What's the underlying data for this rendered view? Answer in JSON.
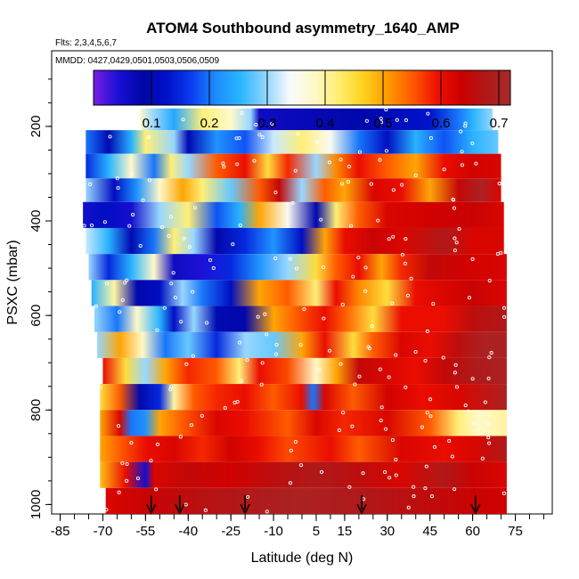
{
  "chart_data": {
    "type": "heatmap",
    "title": "ATOM4 Southbound asymmetry_1640_AMP",
    "flights_label": "Flts: 2,3,4,5,6,7",
    "dates_label": "MMDD: 0427,0429,0501,0503,0506,0509",
    "xlabel": "Latitude (deg N)",
    "ylabel": "PSXC (mbar)",
    "xlim": [
      -88,
      88
    ],
    "ylim": [
      1020,
      40
    ],
    "x_ticks": [
      -85,
      -70,
      -55,
      -40,
      -25,
      -10,
      5,
      15,
      30,
      45,
      60,
      75
    ],
    "x_tick_labels": [
      "-85",
      "-70",
      "-55",
      "-40",
      "-25",
      "-10",
      "5",
      "15",
      "30",
      "45",
      "60",
      "75"
    ],
    "y_ticks": [
      200,
      400,
      600,
      800,
      1000
    ],
    "y_tick_labels": [
      "200",
      "400",
      "600",
      "800",
      "1000"
    ],
    "colorbar": {
      "range": [
        0.0,
        0.72
      ],
      "ticks": [
        0.1,
        0.2,
        0.3,
        0.4,
        0.5,
        0.6,
        0.7
      ],
      "tick_labels": [
        "0.1",
        "0.2",
        "0.3",
        "0.4",
        "0.5",
        "0.6",
        "0.7"
      ],
      "colors": [
        "#7b1de6",
        "#1810d6",
        "#0006a6",
        "#0010c8",
        "#0a3ef0",
        "#1e8cff",
        "#29b6ff",
        "#8fd4ff",
        "#f8fbff",
        "#fff9c8",
        "#ffee70",
        "#ffd21e",
        "#ff9a00",
        "#ff5a00",
        "#f01000",
        "#cc0000",
        "#b01818",
        "#a82a2a"
      ]
    },
    "profile_markers_lat": [
      -53,
      -43,
      -20,
      21,
      61
    ],
    "bands": [
      {
        "p_top": 162,
        "p_bot": 208,
        "lat_start": -57,
        "lat_end": 67,
        "stops": [
          [
            -57,
            0.38
          ],
          [
            -52,
            0.3
          ],
          [
            -45,
            0.24
          ],
          [
            -35,
            0.42
          ],
          [
            -25,
            0.38
          ],
          [
            -18,
            0.3
          ],
          [
            -15,
            0.06
          ],
          [
            0,
            0.07
          ],
          [
            20,
            0.09
          ],
          [
            45,
            0.13
          ],
          [
            55,
            0.2
          ],
          [
            60,
            0.25
          ],
          [
            67,
            0.3
          ]
        ]
      },
      {
        "p_top": 208,
        "p_bot": 258,
        "lat_start": -76,
        "lat_end": 69,
        "stops": [
          [
            -76,
            0.2
          ],
          [
            -68,
            0.1
          ],
          [
            -60,
            0.25
          ],
          [
            -55,
            0.42
          ],
          [
            -45,
            0.3
          ],
          [
            -40,
            0.1
          ],
          [
            -30,
            0.22
          ],
          [
            -20,
            0.18
          ],
          [
            -10,
            0.32
          ],
          [
            0,
            0.42
          ],
          [
            10,
            0.35
          ],
          [
            20,
            0.2
          ],
          [
            30,
            0.12
          ],
          [
            40,
            0.25
          ],
          [
            50,
            0.18
          ],
          [
            60,
            0.25
          ],
          [
            69,
            0.28
          ]
        ]
      },
      {
        "p_top": 258,
        "p_bot": 310,
        "lat_start": -76,
        "lat_end": 70,
        "stops": [
          [
            -76,
            0.15
          ],
          [
            -68,
            0.25
          ],
          [
            -60,
            0.38
          ],
          [
            -52,
            0.2
          ],
          [
            -46,
            0.42
          ],
          [
            -40,
            0.3
          ],
          [
            -30,
            0.55
          ],
          [
            -20,
            0.6
          ],
          [
            -12,
            0.45
          ],
          [
            -5,
            0.58
          ],
          [
            5,
            0.3
          ],
          [
            12,
            0.52
          ],
          [
            20,
            0.6
          ],
          [
            30,
            0.55
          ],
          [
            40,
            0.5
          ],
          [
            50,
            0.6
          ],
          [
            60,
            0.63
          ],
          [
            70,
            0.62
          ]
        ]
      },
      {
        "p_top": 310,
        "p_bot": 360,
        "lat_start": -76,
        "lat_end": 70,
        "stops": [
          [
            -76,
            0.3
          ],
          [
            -66,
            0.12
          ],
          [
            -58,
            0.22
          ],
          [
            -50,
            0.38
          ],
          [
            -42,
            0.5
          ],
          [
            -35,
            0.42
          ],
          [
            -25,
            0.28
          ],
          [
            -15,
            0.55
          ],
          [
            -8,
            0.65
          ],
          [
            0,
            0.3
          ],
          [
            8,
            0.55
          ],
          [
            15,
            0.5
          ],
          [
            25,
            0.62
          ],
          [
            35,
            0.6
          ],
          [
            45,
            0.5
          ],
          [
            55,
            0.65
          ],
          [
            63,
            0.7
          ],
          [
            70,
            0.62
          ]
        ]
      },
      {
        "p_top": 360,
        "p_bot": 415,
        "lat_start": -77,
        "lat_end": 71,
        "stops": [
          [
            -77,
            0.05
          ],
          [
            -70,
            0.12
          ],
          [
            -60,
            0.05
          ],
          [
            -50,
            0.3
          ],
          [
            -40,
            0.42
          ],
          [
            -30,
            0.18
          ],
          [
            -22,
            0.25
          ],
          [
            -15,
            0.5
          ],
          [
            -5,
            0.35
          ],
          [
            5,
            0.08
          ],
          [
            12,
            0.42
          ],
          [
            20,
            0.55
          ],
          [
            30,
            0.62
          ],
          [
            45,
            0.63
          ],
          [
            60,
            0.64
          ],
          [
            71,
            0.62
          ]
        ]
      },
      {
        "p_top": 415,
        "p_bot": 470,
        "lat_start": -76,
        "lat_end": 71,
        "stops": [
          [
            -76,
            0.32
          ],
          [
            -68,
            0.25
          ],
          [
            -60,
            0.1
          ],
          [
            -52,
            0.2
          ],
          [
            -45,
            0.42
          ],
          [
            -38,
            0.3
          ],
          [
            -30,
            0.08
          ],
          [
            -20,
            0.15
          ],
          [
            -10,
            0.22
          ],
          [
            0,
            0.12
          ],
          [
            8,
            0.5
          ],
          [
            15,
            0.6
          ],
          [
            25,
            0.64
          ],
          [
            35,
            0.62
          ],
          [
            50,
            0.68
          ],
          [
            60,
            0.62
          ],
          [
            71,
            0.62
          ]
        ]
      },
      {
        "p_top": 470,
        "p_bot": 525,
        "lat_start": -75,
        "lat_end": 72,
        "stops": [
          [
            -75,
            0.3
          ],
          [
            -68,
            0.15
          ],
          [
            -60,
            0.25
          ],
          [
            -52,
            0.38
          ],
          [
            -45,
            0.06
          ],
          [
            -35,
            0.04
          ],
          [
            -25,
            0.15
          ],
          [
            -15,
            0.22
          ],
          [
            -5,
            0.3
          ],
          [
            5,
            0.45
          ],
          [
            12,
            0.55
          ],
          [
            20,
            0.6
          ],
          [
            28,
            0.5
          ],
          [
            35,
            0.58
          ],
          [
            45,
            0.65
          ],
          [
            58,
            0.63
          ],
          [
            72,
            0.62
          ]
        ]
      },
      {
        "p_top": 525,
        "p_bot": 580,
        "lat_start": -74,
        "lat_end": 72,
        "stops": [
          [
            -74,
            0.25
          ],
          [
            -66,
            0.4
          ],
          [
            -58,
            0.08
          ],
          [
            -50,
            0.12
          ],
          [
            -42,
            0.3
          ],
          [
            -35,
            0.2
          ],
          [
            -25,
            0.12
          ],
          [
            -15,
            0.5
          ],
          [
            -5,
            0.55
          ],
          [
            5,
            0.42
          ],
          [
            12,
            0.6
          ],
          [
            20,
            0.52
          ],
          [
            30,
            0.45
          ],
          [
            40,
            0.6
          ],
          [
            50,
            0.62
          ],
          [
            60,
            0.64
          ],
          [
            72,
            0.62
          ]
        ]
      },
      {
        "p_top": 580,
        "p_bot": 635,
        "lat_start": -73,
        "lat_end": 72,
        "stops": [
          [
            -73,
            0.3
          ],
          [
            -65,
            0.2
          ],
          [
            -58,
            0.38
          ],
          [
            -50,
            0.25
          ],
          [
            -45,
            0.12
          ],
          [
            -38,
            0.3
          ],
          [
            -30,
            0.1
          ],
          [
            -20,
            0.08
          ],
          [
            -10,
            0.5
          ],
          [
            -2,
            0.55
          ],
          [
            8,
            0.6
          ],
          [
            15,
            0.55
          ],
          [
            25,
            0.45
          ],
          [
            35,
            0.6
          ],
          [
            50,
            0.6
          ],
          [
            60,
            0.66
          ],
          [
            72,
            0.68
          ]
        ]
      },
      {
        "p_top": 635,
        "p_bot": 690,
        "lat_start": -72,
        "lat_end": 72,
        "stops": [
          [
            -72,
            0.3
          ],
          [
            -64,
            0.5
          ],
          [
            -56,
            0.38
          ],
          [
            -48,
            0.2
          ],
          [
            -40,
            0.28
          ],
          [
            -30,
            0.15
          ],
          [
            -20,
            0.3
          ],
          [
            -10,
            0.28
          ],
          [
            0,
            0.5
          ],
          [
            8,
            0.6
          ],
          [
            18,
            0.45
          ],
          [
            25,
            0.55
          ],
          [
            35,
            0.62
          ],
          [
            45,
            0.6
          ],
          [
            55,
            0.66
          ],
          [
            64,
            0.7
          ],
          [
            72,
            0.7
          ]
        ]
      },
      {
        "p_top": 690,
        "p_bot": 745,
        "lat_start": -70,
        "lat_end": 72,
        "stops": [
          [
            -70,
            0.6
          ],
          [
            -62,
            0.45
          ],
          [
            -55,
            0.3
          ],
          [
            -48,
            0.5
          ],
          [
            -40,
            0.58
          ],
          [
            -30,
            0.55
          ],
          [
            -22,
            0.42
          ],
          [
            -15,
            0.6
          ],
          [
            -5,
            0.56
          ],
          [
            5,
            0.38
          ],
          [
            12,
            0.5
          ],
          [
            20,
            0.65
          ],
          [
            30,
            0.62
          ],
          [
            40,
            0.6
          ],
          [
            50,
            0.65
          ],
          [
            60,
            0.68
          ],
          [
            72,
            0.7
          ]
        ]
      },
      {
        "p_top": 745,
        "p_bot": 800,
        "lat_start": -71,
        "lat_end": 72,
        "stops": [
          [
            -71,
            0.45
          ],
          [
            -64,
            0.55
          ],
          [
            -57,
            0.08
          ],
          [
            -50,
            0.15
          ],
          [
            -45,
            0.4
          ],
          [
            -38,
            0.55
          ],
          [
            -30,
            0.58
          ],
          [
            -20,
            0.6
          ],
          [
            -10,
            0.55
          ],
          [
            0,
            0.6
          ],
          [
            4,
            0.2
          ],
          [
            8,
            0.62
          ],
          [
            18,
            0.55
          ],
          [
            30,
            0.63
          ],
          [
            42,
            0.6
          ],
          [
            55,
            0.62
          ],
          [
            72,
            0.7
          ]
        ]
      },
      {
        "p_top": 800,
        "p_bot": 855,
        "lat_start": -71,
        "lat_end": 72,
        "stops": [
          [
            -71,
            0.5
          ],
          [
            -64,
            0.62
          ],
          [
            -60,
            0.2
          ],
          [
            -55,
            0.22
          ],
          [
            -50,
            0.5
          ],
          [
            -40,
            0.56
          ],
          [
            -30,
            0.62
          ],
          [
            -20,
            0.6
          ],
          [
            -5,
            0.55
          ],
          [
            5,
            0.62
          ],
          [
            15,
            0.58
          ],
          [
            30,
            0.62
          ],
          [
            45,
            0.55
          ],
          [
            55,
            0.42
          ],
          [
            62,
            0.38
          ],
          [
            72,
            0.4
          ]
        ]
      },
      {
        "p_top": 855,
        "p_bot": 910,
        "lat_start": -71,
        "lat_end": 72,
        "stops": [
          [
            -71,
            0.5
          ],
          [
            -64,
            0.55
          ],
          [
            -55,
            0.6
          ],
          [
            -45,
            0.62
          ],
          [
            -35,
            0.58
          ],
          [
            -25,
            0.63
          ],
          [
            -15,
            0.6
          ],
          [
            -5,
            0.56
          ],
          [
            10,
            0.6
          ],
          [
            20,
            0.55
          ],
          [
            35,
            0.62
          ],
          [
            50,
            0.6
          ],
          [
            60,
            0.62
          ],
          [
            72,
            0.68
          ]
        ]
      },
      {
        "p_top": 910,
        "p_bot": 965,
        "lat_start": -71,
        "lat_end": 72,
        "stops": [
          [
            -71,
            0.48
          ],
          [
            -62,
            0.6
          ],
          [
            -55,
            0.05
          ],
          [
            -52,
            0.62
          ],
          [
            -40,
            0.65
          ],
          [
            -25,
            0.63
          ],
          [
            -10,
            0.66
          ],
          [
            5,
            0.68
          ],
          [
            20,
            0.66
          ],
          [
            35,
            0.62
          ],
          [
            50,
            0.68
          ],
          [
            60,
            0.64
          ],
          [
            72,
            0.62
          ]
        ]
      },
      {
        "p_top": 965,
        "p_bot": 1020,
        "lat_start": -69,
        "lat_end": 72,
        "stops": [
          [
            -69,
            0.62
          ],
          [
            -55,
            0.64
          ],
          [
            -40,
            0.66
          ],
          [
            -20,
            0.68
          ],
          [
            0,
            0.7
          ],
          [
            20,
            0.68
          ],
          [
            40,
            0.66
          ],
          [
            60,
            0.64
          ],
          [
            72,
            0.63
          ]
        ]
      }
    ]
  }
}
